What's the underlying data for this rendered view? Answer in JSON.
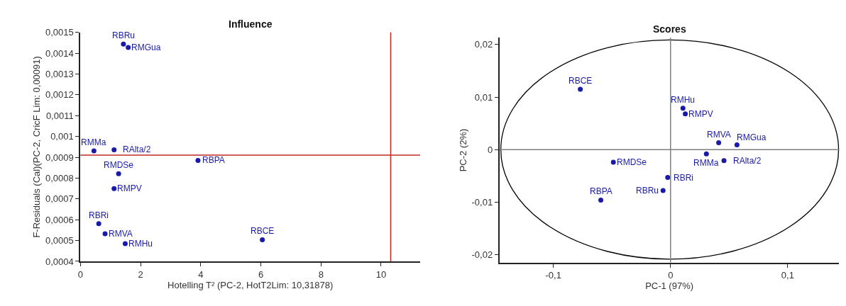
{
  "chart_data": [
    {
      "type": "scatter",
      "title": "Influence",
      "xlabel": "Hotelling T² (PC-2, HotT2Lim: 10,31878)",
      "ylabel": "F-Residuals (Cal)(PC-2, CricF Lim: 0,00091)",
      "marker": "circle",
      "grid": false,
      "xlim": [
        0,
        11.3
      ],
      "xticks": [
        0,
        2,
        4,
        6,
        8,
        10
      ],
      "ylim": [
        0.0004,
        0.0015
      ],
      "yticks": [
        {
          "value": 0.0004,
          "label": "0,0004"
        },
        {
          "value": 0.0005,
          "label": "0,0005"
        },
        {
          "value": 0.0006,
          "label": "0,0006"
        },
        {
          "value": 0.0007,
          "label": "0,0007"
        },
        {
          "value": 0.0008,
          "label": "0,0008"
        },
        {
          "value": 0.0009,
          "label": "0,0009"
        },
        {
          "value": 0.001,
          "label": "0,001"
        },
        {
          "value": 0.0011,
          "label": "0,0011"
        },
        {
          "value": 0.0012,
          "label": "0,0012"
        },
        {
          "value": 0.0013,
          "label": "0,0013"
        },
        {
          "value": 0.0014,
          "label": "0,0014"
        },
        {
          "value": 0.0015,
          "label": "0,0015"
        }
      ],
      "ref_lines": [
        {
          "axis": "y",
          "value": 0.00091,
          "color": "#c0282a"
        },
        {
          "axis": "x",
          "value": 10.31878,
          "color": "#c0282a"
        }
      ],
      "series": [
        {
          "name": "RBRu",
          "color": "#1a1aa8",
          "x": [
            1.43
          ],
          "values": [
            0.001444
          ]
        },
        {
          "name": "RMGua",
          "color": "#1a1aa8",
          "x": [
            1.59
          ],
          "values": [
            0.001428
          ]
        },
        {
          "name": "RMMa",
          "color": "#1a1aa8",
          "x": [
            0.45
          ],
          "values": [
            0.000931
          ]
        },
        {
          "name": "RAlta/2",
          "color": "#1a1aa8",
          "x": [
            1.12
          ],
          "values": [
            0.000936
          ]
        },
        {
          "name": "RBPA",
          "color": "#1a1aa8",
          "x": [
            3.91
          ],
          "values": [
            0.000885
          ]
        },
        {
          "name": "RMDSe",
          "color": "#1a1aa8",
          "x": [
            1.27
          ],
          "values": [
            0.000821
          ]
        },
        {
          "name": "RMPV",
          "color": "#1a1aa8",
          "x": [
            1.12
          ],
          "values": [
            0.00075
          ]
        },
        {
          "name": "RBRi",
          "color": "#1a1aa8",
          "x": [
            0.61
          ],
          "values": [
            0.000581
          ]
        },
        {
          "name": "RMVA",
          "color": "#1a1aa8",
          "x": [
            0.82
          ],
          "values": [
            0.000533
          ]
        },
        {
          "name": "RMHu",
          "color": "#1a1aa8",
          "x": [
            1.49
          ],
          "values": [
            0.000485
          ]
        },
        {
          "name": "RBCE",
          "color": "#1a1aa8",
          "x": [
            6.05
          ],
          "values": [
            0.000504
          ]
        }
      ]
    },
    {
      "type": "scatter",
      "title": "Scores",
      "xlabel": "PC-1 (97%)",
      "ylabel": "PC-2 (2%)",
      "marker": "circle",
      "grid": false,
      "xlim": [
        -0.146,
        0.144
      ],
      "xticks": [
        {
          "value": -0.1,
          "label": "-0,1"
        },
        0,
        {
          "value": 0.1,
          "label": "0,1"
        }
      ],
      "ylim": [
        -0.0215,
        0.0213
      ],
      "yticks": [
        {
          "value": -0.02,
          "label": "-0,02"
        },
        {
          "value": -0.01,
          "label": "-0,01"
        },
        0,
        {
          "value": 0.01,
          "label": "0,01"
        },
        {
          "value": 0.02,
          "label": "0,02"
        }
      ],
      "ref_lines": [
        {
          "axis": "y",
          "value": 0,
          "color": "#808080"
        },
        {
          "axis": "x",
          "value": 0,
          "color": "#808080"
        }
      ],
      "series": [
        {
          "name": "RBCE",
          "color": "#1a1aa8",
          "x": [
            -0.077
          ],
          "values": [
            0.0115
          ]
        },
        {
          "name": "RMDSe",
          "color": "#1a1aa8",
          "x": [
            -0.0488
          ],
          "values": [
            -0.0024
          ]
        },
        {
          "name": "RBPA",
          "color": "#1a1aa8",
          "x": [
            -0.0595
          ],
          "values": [
            -0.0096
          ]
        },
        {
          "name": "RMHu",
          "color": "#1a1aa8",
          "x": [
            0.0106
          ],
          "values": [
            0.0079
          ]
        },
        {
          "name": "RMPV",
          "color": "#1a1aa8",
          "x": [
            0.0126
          ],
          "values": [
            0.0068
          ]
        },
        {
          "name": "RMVA",
          "color": "#1a1aa8",
          "x": [
            0.0411
          ],
          "values": [
            0.0013
          ]
        },
        {
          "name": "RMGua",
          "color": "#1a1aa8",
          "x": [
            0.0567
          ],
          "values": [
            0.0009
          ]
        },
        {
          "name": "RMMa",
          "color": "#1a1aa8",
          "x": [
            0.0306
          ],
          "values": [
            -0.0008
          ]
        },
        {
          "name": "RAlta/2",
          "color": "#1a1aa8",
          "x": [
            0.0456
          ],
          "values": [
            -0.0021
          ]
        },
        {
          "name": "RBRi",
          "color": "#1a1aa8",
          "x": [
            -0.0024
          ],
          "values": [
            -0.0053
          ]
        },
        {
          "name": "RBRu",
          "color": "#1a1aa8",
          "x": [
            -0.0064
          ],
          "values": [
            -0.0078
          ]
        }
      ]
    }
  ]
}
